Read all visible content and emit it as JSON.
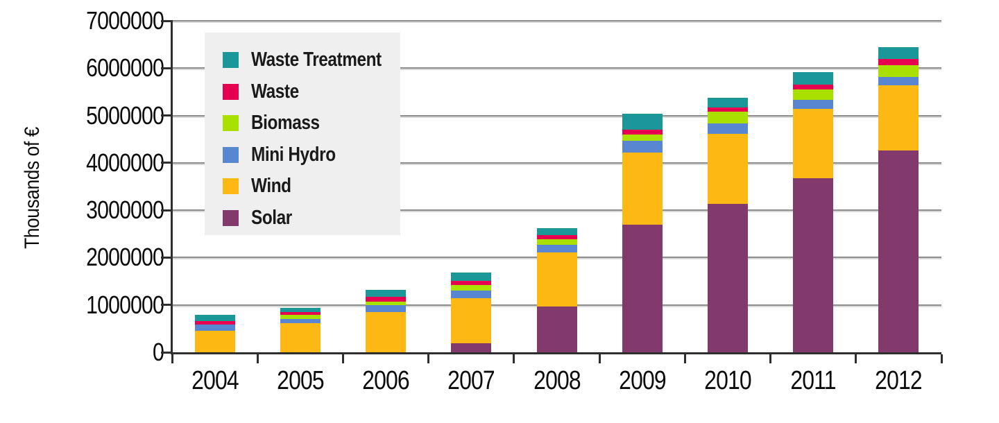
{
  "chart_data": {
    "type": "bar",
    "subtype": "stacked-vertical",
    "title": "",
    "xlabel": "",
    "ylabel": "Thousands of €",
    "ylim": [
      0,
      7000000
    ],
    "ytick_interval": 1000000,
    "ytick_labels": [
      "0",
      "1000000",
      "2000000",
      "3000000",
      "4000000",
      "5000000",
      "6000000",
      "7000000"
    ],
    "grid": "horizontal",
    "legend_position": "upper-left-inside",
    "legend_order_top_to_bottom": [
      "Waste Treatment",
      "Waste",
      "Biomass",
      "Mini Hydro",
      "Wind",
      "Solar"
    ],
    "categories": [
      "2004",
      "2005",
      "2006",
      "2007",
      "2008",
      "2009",
      "2010",
      "2011",
      "2012"
    ],
    "series_bottom_to_top": [
      {
        "name": "Solar",
        "color": "#823a6c",
        "values": [
          0,
          0,
          0,
          185000,
          960000,
          2690000,
          3130000,
          3670000,
          4255000
        ]
      },
      {
        "name": "Wind",
        "color": "#fdb813",
        "values": [
          450000,
          620000,
          855000,
          960000,
          1150000,
          1530000,
          1490000,
          1475000,
          1385000
        ]
      },
      {
        "name": "Mini Hydro",
        "color": "#5886d0",
        "values": [
          130000,
          90000,
          145000,
          160000,
          160000,
          245000,
          220000,
          180000,
          180000
        ]
      },
      {
        "name": "Biomass",
        "color": "#a9e000",
        "values": [
          0,
          90000,
          75000,
          115000,
          115000,
          130000,
          245000,
          225000,
          245000
        ]
      },
      {
        "name": "Waste",
        "color": "#e80050",
        "values": [
          80000,
          50000,
          100000,
          90000,
          90000,
          110000,
          90000,
          105000,
          135000
        ]
      },
      {
        "name": "Waste Treatment",
        "color": "#1b9699",
        "values": [
          130000,
          90000,
          145000,
          170000,
          140000,
          330000,
          210000,
          260000,
          250000
        ]
      }
    ],
    "colors": {
      "grid": "#8e8e8e",
      "grid_shadow": "#d8d8d8",
      "axis": "#2e2e2e",
      "legend_background": "#efefef",
      "text": "#0c0c0c"
    }
  }
}
